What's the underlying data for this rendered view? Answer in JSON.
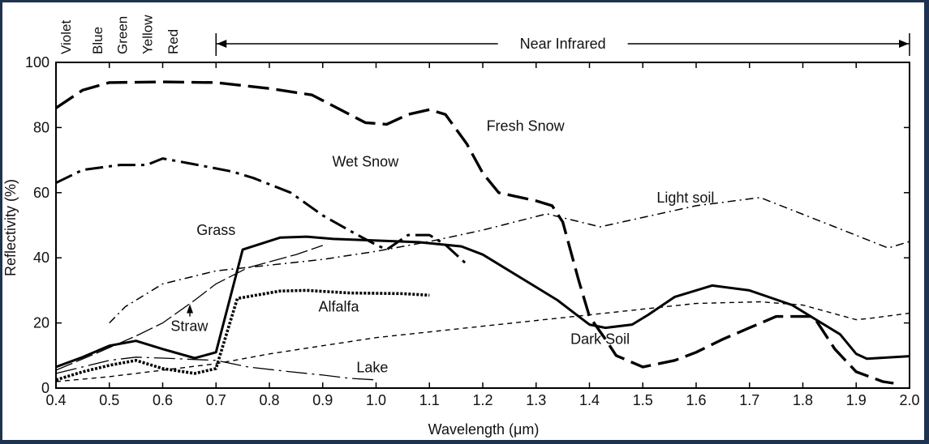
{
  "chart_data": {
    "type": "line",
    "xlabel": "Wavelength (μm)",
    "ylabel": "Reflectivity (%)",
    "xlim": [
      0.4,
      2.0
    ],
    "ylim": [
      0,
      100
    ],
    "x_ticks": [
      "0.4",
      "0.5",
      "0.6",
      "0.7",
      "0.8",
      "0.9",
      "1.0",
      "1.1",
      "1.2",
      "1.3",
      "1.4",
      "1.5",
      "1.6",
      "1.7",
      "1.8",
      "1.9",
      "2.0"
    ],
    "y_ticks": [
      "0",
      "20",
      "40",
      "60",
      "80",
      "100"
    ],
    "bands": [
      "Violet",
      "Blue",
      "Green",
      "Yellow",
      "Red"
    ],
    "near_infrared_label": "Near Infrared",
    "series": [
      {
        "name": "Fresh Snow",
        "style": "longdash",
        "width": 3.4,
        "points": [
          [
            0.4,
            86
          ],
          [
            0.45,
            91.5
          ],
          [
            0.5,
            93.8
          ],
          [
            0.6,
            94
          ],
          [
            0.7,
            93.8
          ],
          [
            0.8,
            92
          ],
          [
            0.88,
            90
          ],
          [
            0.98,
            81.5
          ],
          [
            1.02,
            81
          ],
          [
            1.06,
            84
          ],
          [
            1.1,
            85.5
          ],
          [
            1.13,
            84
          ],
          [
            1.17,
            75
          ],
          [
            1.2,
            66
          ],
          [
            1.23,
            60
          ],
          [
            1.3,
            57.5
          ],
          [
            1.33,
            56
          ],
          [
            1.35,
            51
          ],
          [
            1.38,
            33
          ],
          [
            1.4,
            22
          ],
          [
            1.43,
            15
          ],
          [
            1.45,
            10
          ],
          [
            1.5,
            6.5
          ],
          [
            1.56,
            8.5
          ],
          [
            1.6,
            11
          ],
          [
            1.65,
            15
          ],
          [
            1.7,
            18.5
          ],
          [
            1.75,
            22
          ],
          [
            1.82,
            22
          ],
          [
            1.84,
            17
          ],
          [
            1.86,
            12
          ],
          [
            1.9,
            5
          ],
          [
            1.95,
            2
          ],
          [
            1.97,
            1.5
          ]
        ]
      },
      {
        "name": "Wet Snow",
        "style": "dashdot",
        "width": 3,
        "points": [
          [
            0.4,
            63
          ],
          [
            0.45,
            67
          ],
          [
            0.52,
            68.5
          ],
          [
            0.57,
            68.5
          ],
          [
            0.6,
            70.5
          ],
          [
            0.65,
            69
          ],
          [
            0.73,
            66.5
          ],
          [
            0.77,
            64.5
          ],
          [
            0.84,
            60
          ],
          [
            0.9,
            53
          ],
          [
            0.96,
            47.5
          ],
          [
            1.0,
            44
          ],
          [
            1.02,
            42.5
          ],
          [
            1.06,
            47
          ],
          [
            1.1,
            47
          ],
          [
            1.13,
            44
          ],
          [
            1.17,
            38
          ]
        ]
      },
      {
        "name": "Light soil",
        "style": "thindashdot",
        "width": 1.5,
        "points": [
          [
            0.5,
            20
          ],
          [
            0.53,
            25
          ],
          [
            0.6,
            32
          ],
          [
            0.7,
            36
          ],
          [
            0.9,
            39.5
          ],
          [
            1.0,
            42
          ],
          [
            1.1,
            45
          ],
          [
            1.2,
            48.5
          ],
          [
            1.32,
            53.5
          ],
          [
            1.42,
            49.5
          ],
          [
            1.6,
            56
          ],
          [
            1.72,
            58.5
          ],
          [
            1.86,
            49.5
          ],
          [
            1.96,
            43
          ],
          [
            2.0,
            45
          ]
        ]
      },
      {
        "name": "Grass",
        "style": "solid",
        "width": 3,
        "points": [
          [
            0.4,
            6.5
          ],
          [
            0.45,
            9.5
          ],
          [
            0.5,
            13
          ],
          [
            0.55,
            14.5
          ],
          [
            0.6,
            12
          ],
          [
            0.66,
            9.2
          ],
          [
            0.7,
            11
          ],
          [
            0.75,
            42.5
          ],
          [
            0.82,
            46.2
          ],
          [
            0.87,
            46.5
          ],
          [
            0.92,
            45.8
          ],
          [
            1.0,
            45.3
          ],
          [
            1.08,
            44.8
          ],
          [
            1.16,
            43.5
          ],
          [
            1.2,
            41
          ],
          [
            1.3,
            31
          ],
          [
            1.34,
            27
          ],
          [
            1.38,
            22
          ],
          [
            1.4,
            19.5
          ],
          [
            1.43,
            18.5
          ],
          [
            1.48,
            19.5
          ],
          [
            1.51,
            22.5
          ],
          [
            1.56,
            28
          ],
          [
            1.6,
            30
          ],
          [
            1.63,
            31.5
          ],
          [
            1.7,
            30
          ],
          [
            1.78,
            25.5
          ],
          [
            1.83,
            20.5
          ],
          [
            1.87,
            16.5
          ],
          [
            1.9,
            10.5
          ],
          [
            1.92,
            9
          ],
          [
            2.0,
            9.8
          ]
        ]
      },
      {
        "name": "Straw",
        "style": "longdash-thin",
        "width": 1.3,
        "points": [
          [
            0.4,
            5.5
          ],
          [
            0.48,
            11
          ],
          [
            0.55,
            16
          ],
          [
            0.6,
            20
          ],
          [
            0.66,
            27
          ],
          [
            0.7,
            32
          ],
          [
            0.76,
            37
          ],
          [
            0.85,
            41
          ],
          [
            0.9,
            43.8
          ]
        ]
      },
      {
        "name": "Alfalfa",
        "style": "dotted",
        "width": 3.6,
        "points": [
          [
            0.4,
            2.5
          ],
          [
            0.45,
            5
          ],
          [
            0.5,
            7
          ],
          [
            0.55,
            8.5
          ],
          [
            0.6,
            6
          ],
          [
            0.66,
            4.5
          ],
          [
            0.7,
            6
          ],
          [
            0.74,
            27.5
          ],
          [
            0.82,
            29.8
          ],
          [
            0.87,
            30
          ],
          [
            0.95,
            29.2
          ],
          [
            1.05,
            29
          ],
          [
            1.1,
            28.5
          ]
        ]
      },
      {
        "name": "Lake",
        "style": "lake",
        "width": 1.3,
        "points": [
          [
            0.4,
            4.5
          ],
          [
            0.5,
            8.5
          ],
          [
            0.55,
            9.5
          ],
          [
            0.6,
            9.2
          ],
          [
            0.7,
            8.5
          ],
          [
            0.76,
            6.5
          ],
          [
            0.84,
            5
          ],
          [
            0.9,
            4
          ],
          [
            0.95,
            3
          ],
          [
            1.0,
            2.5
          ]
        ]
      },
      {
        "name": "Dark Soil",
        "style": "shortdash",
        "width": 1.4,
        "points": [
          [
            0.4,
            2
          ],
          [
            0.5,
            3.5
          ],
          [
            0.6,
            5.5
          ],
          [
            0.7,
            7.5
          ],
          [
            0.8,
            10.5
          ],
          [
            0.9,
            13
          ],
          [
            1.0,
            15.5
          ],
          [
            1.2,
            19
          ],
          [
            1.4,
            22.5
          ],
          [
            1.6,
            26
          ],
          [
            1.72,
            26.5
          ],
          [
            1.8,
            25.5
          ],
          [
            1.9,
            21
          ],
          [
            1.93,
            21.5
          ],
          [
            2.0,
            23
          ]
        ]
      }
    ],
    "annotations": [
      {
        "text": "Fresh Snow",
        "x": 1.28,
        "y": 79
      },
      {
        "text": "Wet Snow",
        "x": 0.98,
        "y": 68
      },
      {
        "text": "Light soil",
        "x": 1.58,
        "y": 57
      },
      {
        "text": "Grass",
        "x": 0.7,
        "y": 47
      },
      {
        "text": "Straw",
        "x": 0.65,
        "y": 17.5
      },
      {
        "text": "Alfalfa",
        "x": 0.93,
        "y": 23.5
      },
      {
        "text": "Dark Soil",
        "x": 1.42,
        "y": 13.5
      },
      {
        "text": "Lake",
        "x": 0.993,
        "y": 4.8
      }
    ],
    "grid": false
  }
}
